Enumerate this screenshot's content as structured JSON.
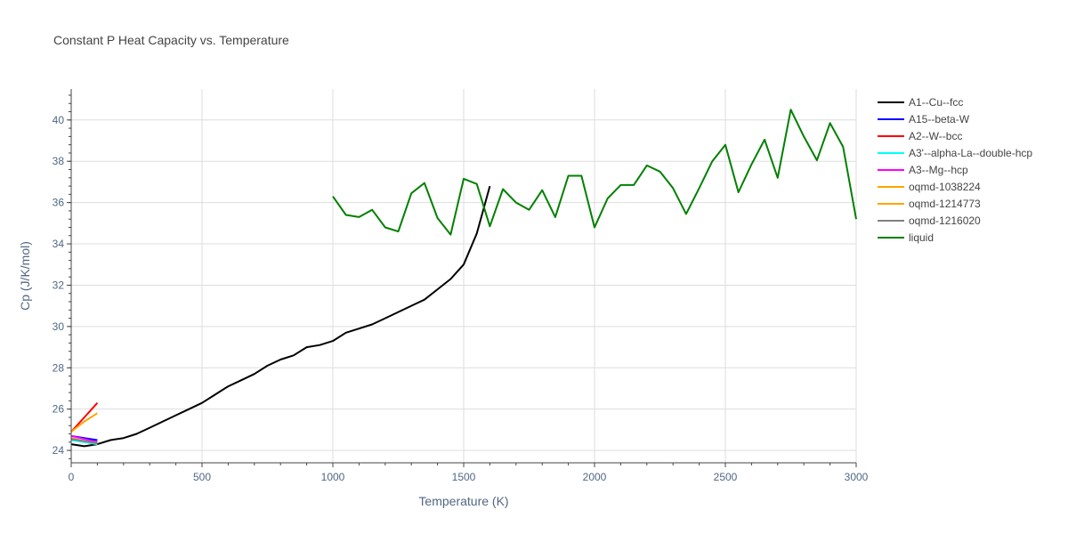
{
  "chart_data": {
    "type": "line",
    "title": "Constant P Heat Capacity vs. Temperature",
    "xlabel": "Temperature (K)",
    "ylabel": "Cp (J/K/mol)",
    "xlim": [
      0,
      3000
    ],
    "ylim": [
      23.4,
      41.5
    ],
    "xticks": [
      0,
      500,
      1000,
      1500,
      2000,
      2500,
      3000
    ],
    "yticks": [
      24,
      26,
      28,
      30,
      32,
      34,
      36,
      38,
      40
    ],
    "grid": true,
    "legend_position": "right",
    "series": [
      {
        "name": "A1--Cu--fcc",
        "color": "#000000",
        "x": [
          0,
          50,
          100,
          150,
          200,
          250,
          300,
          350,
          400,
          450,
          500,
          550,
          600,
          650,
          700,
          750,
          800,
          850,
          900,
          950,
          1000,
          1050,
          1100,
          1150,
          1200,
          1250,
          1300,
          1350,
          1400,
          1450,
          1500,
          1550,
          1600
        ],
        "y": [
          24.3,
          24.2,
          24.3,
          24.5,
          24.6,
          24.8,
          25.1,
          25.4,
          25.7,
          26.0,
          26.3,
          26.7,
          27.1,
          27.4,
          27.7,
          28.1,
          28.4,
          28.6,
          29.0,
          29.1,
          29.3,
          29.7,
          29.9,
          30.1,
          30.4,
          30.7,
          31.0,
          31.3,
          31.8,
          32.3,
          33.0,
          34.5,
          36.8
        ]
      },
      {
        "name": "A15--beta-W",
        "color": "#0000ff",
        "x": [
          0,
          50,
          100
        ],
        "y": [
          24.7,
          24.6,
          24.5
        ]
      },
      {
        "name": "A2--W--bcc",
        "color": "#ff0000",
        "x": [
          0,
          50,
          100
        ],
        "y": [
          24.9,
          25.6,
          26.3
        ]
      },
      {
        "name": "A3'--alpha-La--double-hcp",
        "color": "#00ffff",
        "x": [
          0,
          50,
          100
        ],
        "y": [
          24.5,
          24.4,
          24.3
        ]
      },
      {
        "name": "A3--Mg--hcp",
        "color": "#ff00ff",
        "x": [
          0,
          50,
          100
        ],
        "y": [
          24.7,
          24.55,
          24.4
        ]
      },
      {
        "name": "oqmd-1038224",
        "color": "#ffa500",
        "x": [
          0,
          50,
          100
        ],
        "y": [
          24.9,
          25.4,
          25.8
        ]
      },
      {
        "name": "oqmd-1214773",
        "color": "#ffa500",
        "x": [
          0,
          50,
          100
        ],
        "y": [
          24.6,
          24.45,
          24.35
        ]
      },
      {
        "name": "oqmd-1216020",
        "color": "#808080",
        "x": [
          0,
          50,
          100
        ],
        "y": [
          24.55,
          24.45,
          24.35
        ]
      },
      {
        "name": "liquid",
        "color": "#008000",
        "x": [
          1000,
          1050,
          1100,
          1150,
          1200,
          1250,
          1300,
          1350,
          1400,
          1450,
          1500,
          1550,
          1600,
          1650,
          1700,
          1750,
          1800,
          1850,
          1900,
          1950,
          2000,
          2050,
          2100,
          2150,
          2200,
          2250,
          2300,
          2350,
          2400,
          2450,
          2500,
          2550,
          2600,
          2650,
          2700,
          2750,
          2800,
          2850,
          2900,
          2950,
          3000
        ],
        "y": [
          36.3,
          35.4,
          35.3,
          35.65,
          34.8,
          34.6,
          36.45,
          36.95,
          35.25,
          34.45,
          37.15,
          36.9,
          34.85,
          36.65,
          36.0,
          35.65,
          36.6,
          35.3,
          37.3,
          37.3,
          34.8,
          36.2,
          36.85,
          36.85,
          37.8,
          37.5,
          36.7,
          35.45,
          36.7,
          38.0,
          38.8,
          36.5,
          37.85,
          39.05,
          37.2,
          40.5,
          39.2,
          38.05,
          39.85,
          38.7,
          35.2
        ]
      }
    ]
  }
}
